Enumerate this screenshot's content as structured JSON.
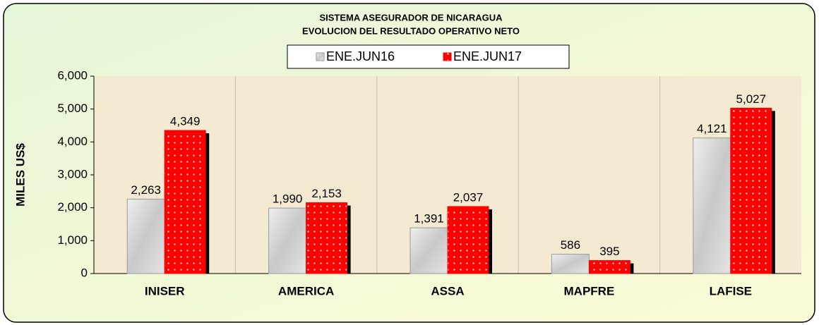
{
  "chart_data": {
    "type": "bar",
    "title": "SISTEMA ASEGURADOR  DE NICARAGUA",
    "subtitle": "EVOLUCION DEL RESULTADO OPERATIVO  NETO",
    "y_label": "MILES US$",
    "categories": [
      "INISER",
      "AMERICA",
      "ASSA",
      "MAPFRE",
      "LAFISE"
    ],
    "series": [
      {
        "name": "ENE.JUN16",
        "color": "#d4d4d4",
        "values": [
          2263,
          1990,
          1391,
          586,
          4121
        ],
        "value_labels": [
          "2,263",
          "1,990",
          "1,391",
          "586",
          "4,121"
        ]
      },
      {
        "name": "ENE.JUN17",
        "color": "#ff0000",
        "values": [
          4349,
          2153,
          2037,
          395,
          5027
        ],
        "value_labels": [
          "4,349",
          "2,153",
          "2,037",
          "395",
          "5,027"
        ]
      }
    ],
    "ylim": [
      0,
      6000
    ],
    "yticks": [
      0,
      {
        "value": 1000,
        "label": "1,000"
      },
      {
        "value": 2000,
        "label": "2,000"
      },
      {
        "value": 3000,
        "label": "3,000"
      },
      {
        "value": 4000,
        "label": "4,000"
      },
      {
        "value": 5000,
        "label": "5,000"
      },
      {
        "value": 6000,
        "label": "6,000"
      }
    ],
    "legend": "top"
  }
}
